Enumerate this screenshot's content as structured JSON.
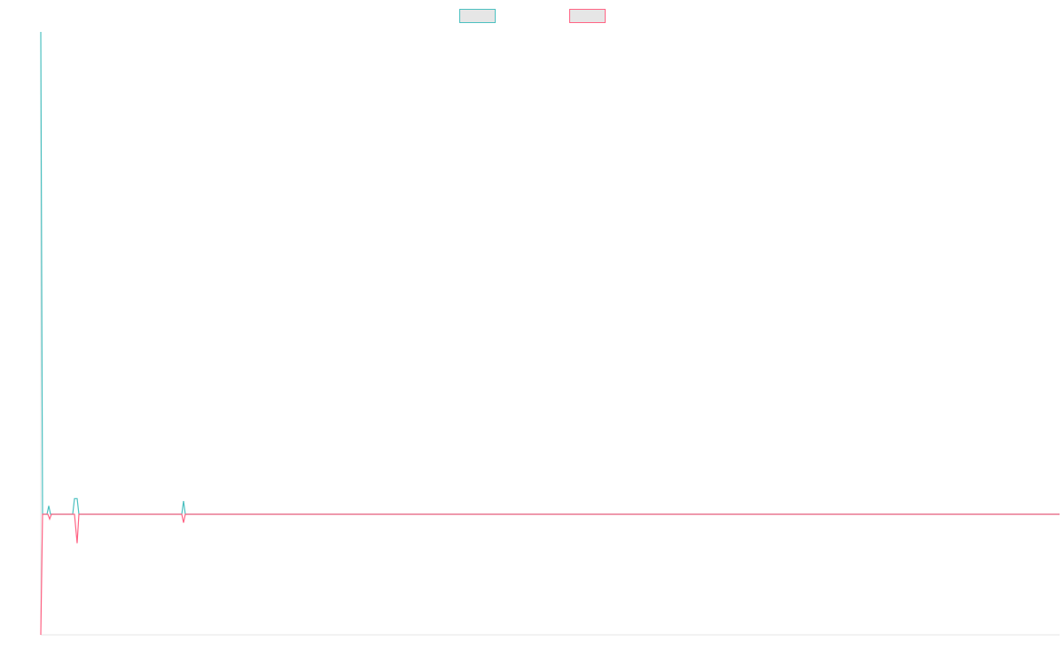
{
  "chart_data": {
    "type": "line",
    "series": [
      {
        "color": "#4bc0c0",
        "x": [
          0,
          2,
          7,
          9,
          11,
          36,
          38,
          41,
          43,
          159,
          161,
          163,
          1149
        ],
        "values": [
          4,
          0,
          0,
          0.07,
          0,
          0,
          0.13,
          0.13,
          0,
          0,
          0.11,
          0,
          0
        ]
      },
      {
        "color": "#ff6384",
        "x": [
          0,
          2,
          8,
          10,
          12,
          38,
          41,
          43,
          159,
          161,
          163,
          1149
        ],
        "values": [
          -1,
          0,
          0,
          -0.04,
          0,
          0,
          -0.24,
          0,
          0,
          -0.07,
          0,
          0
        ]
      }
    ],
    "xlim": [
      0,
      1149
    ],
    "ylim": [
      -1,
      4
    ],
    "legend": "top"
  }
}
